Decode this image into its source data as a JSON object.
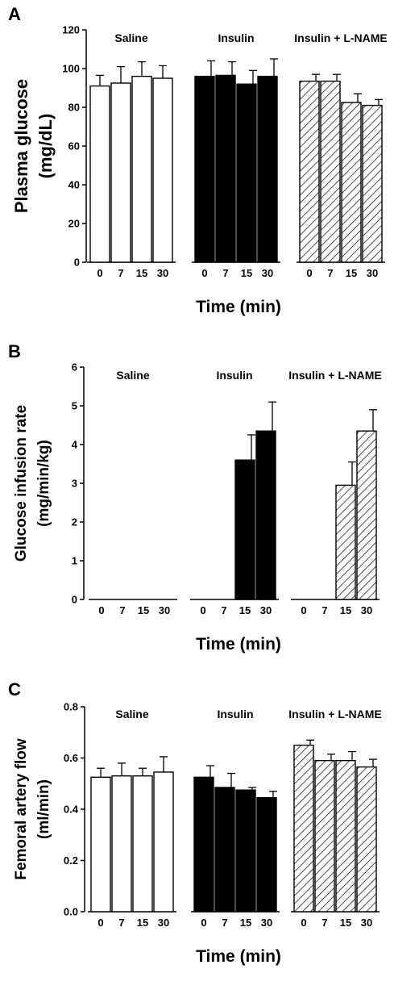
{
  "chart_data": [
    {
      "type": "bar",
      "panel": "A",
      "ylabel": [
        "Plasma  glucose",
        "(mg/dL)"
      ],
      "xlabel": "Time (min)",
      "ylim": [
        0,
        120
      ],
      "yticks": [
        "0",
        "20",
        "40",
        "60",
        "80",
        "100",
        "120"
      ],
      "yticks_values": [
        0,
        20,
        40,
        60,
        80,
        100,
        120
      ],
      "categories": [
        "0",
        "7",
        "15",
        "30"
      ],
      "groups": [
        {
          "name": "Saline",
          "fill": "white",
          "values": [
            91,
            92.5,
            96,
            95
          ],
          "errors": [
            5.5,
            8.5,
            7.5,
            6.5
          ]
        },
        {
          "name": "Insulin",
          "fill": "black",
          "values": [
            96,
            96.5,
            92,
            96
          ],
          "errors": [
            8,
            7,
            7,
            9
          ]
        },
        {
          "name": "Insulin + L-NAME",
          "fill": "hatched",
          "values": [
            93.5,
            93.5,
            82.5,
            81
          ],
          "errors": [
            3.5,
            3.5,
            4.5,
            3
          ]
        }
      ]
    },
    {
      "type": "bar",
      "panel": "B",
      "ylabel": [
        "Glucose infusion rate",
        "(mg/min/kg)"
      ],
      "xlabel": "Time (min)",
      "ylim": [
        0,
        6
      ],
      "yticks": [
        "0",
        "1",
        "2",
        "3",
        "4",
        "5",
        "6"
      ],
      "yticks_values": [
        0,
        1,
        2,
        3,
        4,
        5,
        6
      ],
      "categories": [
        "0",
        "7",
        "15",
        "30"
      ],
      "groups": [
        {
          "name": "Saline",
          "fill": "white",
          "values": [
            0,
            0,
            0,
            0
          ],
          "errors": [
            0,
            0,
            0,
            0
          ]
        },
        {
          "name": "Insulin",
          "fill": "black",
          "values": [
            0,
            0,
            3.6,
            4.35
          ],
          "errors": [
            0,
            0,
            0.65,
            0.75
          ]
        },
        {
          "name": "Insulin + L-NAME",
          "fill": "hatched",
          "values": [
            0,
            0,
            2.95,
            4.35
          ],
          "errors": [
            0,
            0,
            0.6,
            0.55
          ]
        }
      ]
    },
    {
      "type": "bar",
      "panel": "C",
      "ylabel": [
        "Femoral artery flow",
        "(ml/min)"
      ],
      "xlabel": "Time (min)",
      "ylim": [
        0,
        0.8
      ],
      "yticks": [
        "0.0",
        "0.2",
        "0.4",
        "0.6",
        "0.8"
      ],
      "yticks_values": [
        0,
        0.2,
        0.4,
        0.6,
        0.8
      ],
      "categories": [
        "0",
        "7",
        "15",
        "30"
      ],
      "groups": [
        {
          "name": "Saline",
          "fill": "white",
          "values": [
            0.525,
            0.53,
            0.53,
            0.545
          ],
          "errors": [
            0.035,
            0.05,
            0.03,
            0.06
          ]
        },
        {
          "name": "Insulin",
          "fill": "black",
          "values": [
            0.525,
            0.485,
            0.475,
            0.445
          ],
          "errors": [
            0.045,
            0.055,
            0.01,
            0.025
          ]
        },
        {
          "name": "Insulin + L-NAME",
          "fill": "hatched",
          "values": [
            0.65,
            0.59,
            0.59,
            0.565
          ],
          "errors": [
            0.02,
            0.025,
            0.035,
            0.03
          ]
        }
      ]
    }
  ],
  "colors": {
    "bar_outline": "#000000",
    "bar_solid": "#000000",
    "bar_open": "#ffffff",
    "background": "#ffffff"
  }
}
